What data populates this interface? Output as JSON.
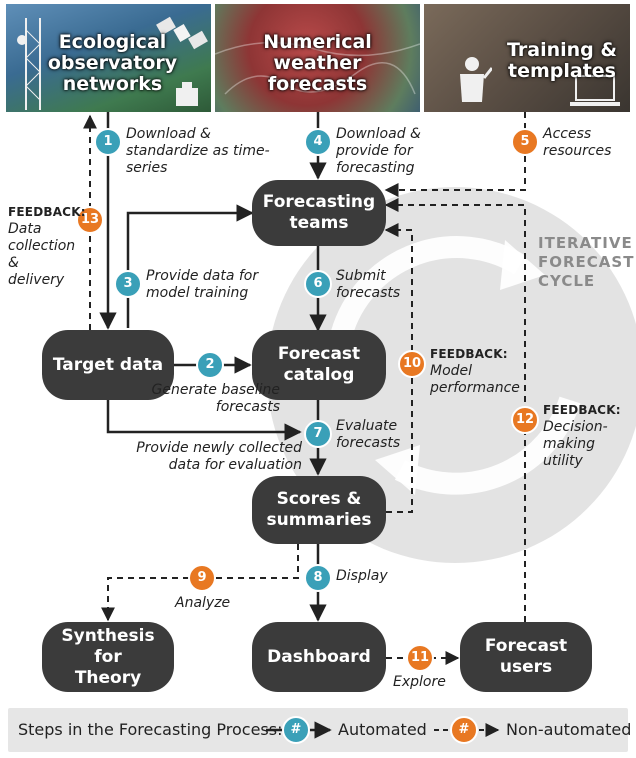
{
  "banners": {
    "ecological": "Ecological observatory networks",
    "weather": "Numerical weather forecasts",
    "training": "Training & templates"
  },
  "nodes": {
    "forecasting_teams": "Forecasting teams",
    "target_data": "Target data",
    "forecast_catalog": "Forecast catalog",
    "scores_summaries": "Scores & summaries",
    "synthesis": "Synthesis for Theory",
    "dashboard": "Dashboard",
    "forecast_users": "Forecast users"
  },
  "steps": [
    {
      "num": "1",
      "label": "Download & standardize as time-series",
      "type": "automated"
    },
    {
      "num": "2",
      "label": "Generate baseline forecasts",
      "type": "automated"
    },
    {
      "num": "3",
      "label": "Provide data for model training",
      "type": "automated"
    },
    {
      "num": "4",
      "label": "Download & provide for forecasting",
      "type": "automated"
    },
    {
      "num": "5",
      "label": "Access resources",
      "type": "non-automated"
    },
    {
      "num": "6",
      "label": "Submit forecasts",
      "type": "automated"
    },
    {
      "num": "7",
      "label": "Evaluate forecasts",
      "type": "automated"
    },
    {
      "num": "8",
      "label": "Display",
      "type": "automated"
    },
    {
      "num": "9",
      "label": "Analyze",
      "type": "non-automated"
    },
    {
      "num": "10",
      "label": "Model performance",
      "type": "non-automated",
      "prefix": "FEEDBACK:"
    },
    {
      "num": "11",
      "label": "Explore",
      "type": "non-automated"
    },
    {
      "num": "12",
      "label": "Decision-making utility",
      "type": "non-automated",
      "prefix": "FEEDBACK:"
    },
    {
      "num": "13",
      "label": "Data collection & delivery",
      "type": "non-automated",
      "prefix": "FEEDBACK:"
    }
  ],
  "extra_labels": {
    "newly_collected": "Provide newly collected data for evaluation"
  },
  "cycle_label": "ITERATIVE FORECAST CYCLE",
  "legend": {
    "title": "Steps in the Forecasting Process:",
    "badge": "#",
    "automated": "Automated",
    "non_automated": "Non-automated"
  },
  "colors": {
    "node": "#3b3b3b",
    "automated": "#3aa0b8",
    "non_automated": "#e87822",
    "cycle": "#e3e3e3",
    "legend_bg": "#e6e6e6"
  }
}
